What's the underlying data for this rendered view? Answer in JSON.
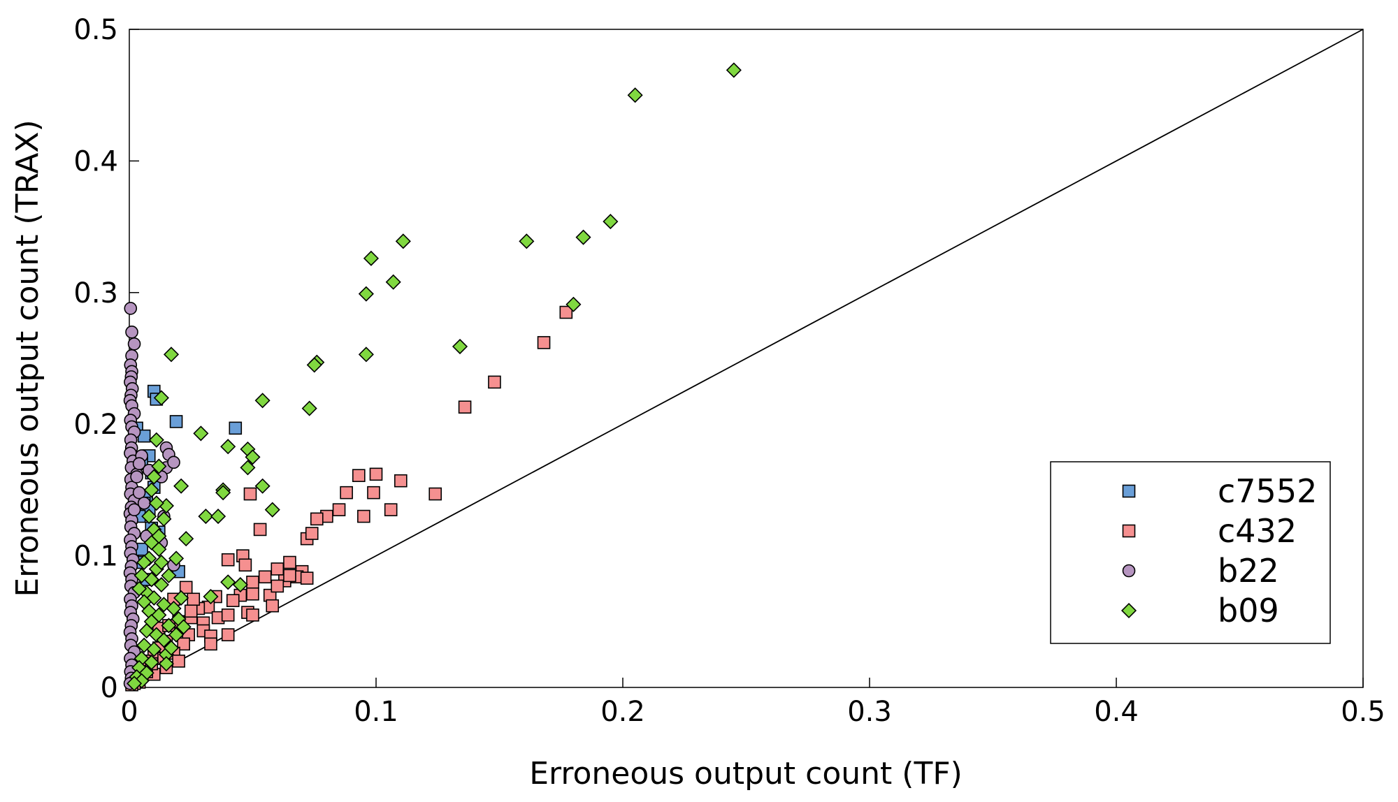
{
  "chart_data": {
    "type": "scatter",
    "xlabel": "Erroneous output count (TF)",
    "ylabel": "Erroneous output count (TRAX)",
    "xlim": [
      0,
      0.5
    ],
    "ylim": [
      0,
      0.5
    ],
    "x_ticks": [
      "0",
      "0.1",
      "0.2",
      "0.3",
      "0.4",
      "0.5"
    ],
    "y_ticks": [
      "0",
      "0.1",
      "0.2",
      "0.3",
      "0.4",
      "0.5"
    ],
    "diagonal_line": true,
    "legend_position": "bottom-right",
    "series": [
      {
        "name": "c7552",
        "marker": "square",
        "color": "#6a9fd8",
        "points": [
          [
            0.01,
            0.225
          ],
          [
            0.011,
            0.219
          ],
          [
            0.019,
            0.202
          ],
          [
            0.043,
            0.197
          ],
          [
            0.003,
            0.197
          ],
          [
            0.006,
            0.191
          ],
          [
            0.008,
            0.176
          ],
          [
            0.005,
            0.17
          ],
          [
            0.009,
            0.163
          ],
          [
            0.01,
            0.152
          ],
          [
            0.007,
            0.146
          ],
          [
            0.006,
            0.14
          ],
          [
            0.008,
            0.135
          ],
          [
            0.004,
            0.13
          ],
          [
            0.009,
            0.121
          ],
          [
            0.012,
            0.118
          ],
          [
            0.02,
            0.088
          ],
          [
            0.005,
            0.105
          ],
          [
            0.003,
            0.095
          ],
          [
            0.007,
            0.082
          ]
        ]
      },
      {
        "name": "c432",
        "marker": "square",
        "color": "#f59090",
        "points": [
          [
            0.177,
            0.285
          ],
          [
            0.168,
            0.262
          ],
          [
            0.148,
            0.232
          ],
          [
            0.136,
            0.213
          ],
          [
            0.124,
            0.147
          ],
          [
            0.11,
            0.157
          ],
          [
            0.1,
            0.162
          ],
          [
            0.093,
            0.161
          ],
          [
            0.099,
            0.148
          ],
          [
            0.088,
            0.148
          ],
          [
            0.106,
            0.135
          ],
          [
            0.095,
            0.13
          ],
          [
            0.085,
            0.135
          ],
          [
            0.08,
            0.13
          ],
          [
            0.076,
            0.128
          ],
          [
            0.072,
            0.113
          ],
          [
            0.074,
            0.117
          ],
          [
            0.049,
            0.147
          ],
          [
            0.053,
            0.12
          ],
          [
            0.046,
            0.1
          ],
          [
            0.04,
            0.097
          ],
          [
            0.047,
            0.093
          ],
          [
            0.06,
            0.09
          ],
          [
            0.065,
            0.095
          ],
          [
            0.07,
            0.088
          ],
          [
            0.063,
            0.081
          ],
          [
            0.068,
            0.084
          ],
          [
            0.055,
            0.084
          ],
          [
            0.05,
            0.08
          ],
          [
            0.045,
            0.07
          ],
          [
            0.042,
            0.066
          ],
          [
            0.035,
            0.069
          ],
          [
            0.032,
            0.061
          ],
          [
            0.028,
            0.06
          ],
          [
            0.025,
            0.053
          ],
          [
            0.03,
            0.049
          ],
          [
            0.036,
            0.053
          ],
          [
            0.04,
            0.055
          ],
          [
            0.048,
            0.057
          ],
          [
            0.05,
            0.055
          ],
          [
            0.057,
            0.07
          ],
          [
            0.058,
            0.062
          ],
          [
            0.05,
            0.071
          ],
          [
            0.06,
            0.077
          ],
          [
            0.065,
            0.085
          ],
          [
            0.072,
            0.083
          ],
          [
            0.023,
            0.076
          ],
          [
            0.026,
            0.067
          ],
          [
            0.018,
            0.067
          ],
          [
            0.02,
            0.05
          ],
          [
            0.024,
            0.04
          ],
          [
            0.022,
            0.033
          ],
          [
            0.03,
            0.043
          ],
          [
            0.033,
            0.039
          ],
          [
            0.04,
            0.04
          ],
          [
            0.033,
            0.033
          ],
          [
            0.015,
            0.035
          ],
          [
            0.012,
            0.03
          ],
          [
            0.01,
            0.025
          ],
          [
            0.018,
            0.026
          ],
          [
            0.02,
            0.02
          ],
          [
            0.014,
            0.022
          ],
          [
            0.008,
            0.015
          ],
          [
            0.005,
            0.01
          ],
          [
            0.003,
            0.008
          ],
          [
            0.006,
            0.02
          ],
          [
            0.012,
            0.045
          ],
          [
            0.016,
            0.047
          ],
          [
            0.025,
            0.058
          ],
          [
            0.015,
            0.015
          ],
          [
            0.01,
            0.01
          ],
          [
            0.004,
            0.004
          ],
          [
            0.002,
            0.003
          ],
          [
            0.001,
            0.002
          ],
          [
            0.007,
            0.012
          ],
          [
            0.009,
            0.018
          ]
        ]
      },
      {
        "name": "b22",
        "marker": "circle",
        "color": "#b695c0",
        "points": [
          [
            0.0005,
            0.288
          ],
          [
            0.001,
            0.27
          ],
          [
            0.002,
            0.261
          ],
          [
            0.001,
            0.252
          ],
          [
            0.0005,
            0.245
          ],
          [
            0.001,
            0.24
          ],
          [
            0.0008,
            0.236
          ],
          [
            0.0004,
            0.232
          ],
          [
            0.0012,
            0.227
          ],
          [
            0.0007,
            0.222
          ],
          [
            0.0003,
            0.218
          ],
          [
            0.001,
            0.214
          ],
          [
            0.002,
            0.208
          ],
          [
            0.0005,
            0.203
          ],
          [
            0.001,
            0.198
          ],
          [
            0.002,
            0.194
          ],
          [
            0.0006,
            0.188
          ],
          [
            0.0009,
            0.182
          ],
          [
            0.0004,
            0.178
          ],
          [
            0.0015,
            0.172
          ],
          [
            0.0008,
            0.167
          ],
          [
            0.003,
            0.162
          ],
          [
            0.0006,
            0.158
          ],
          [
            0.001,
            0.152
          ],
          [
            0.0005,
            0.147
          ],
          [
            0.002,
            0.142
          ],
          [
            0.0008,
            0.137
          ],
          [
            0.0003,
            0.132
          ],
          [
            0.001,
            0.127
          ],
          [
            0.0006,
            0.122
          ],
          [
            0.002,
            0.117
          ],
          [
            0.0004,
            0.112
          ],
          [
            0.001,
            0.107
          ],
          [
            0.0005,
            0.102
          ],
          [
            0.0015,
            0.097
          ],
          [
            0.0008,
            0.092
          ],
          [
            0.0003,
            0.087
          ],
          [
            0.001,
            0.082
          ],
          [
            0.0006,
            0.077
          ],
          [
            0.002,
            0.072
          ],
          [
            0.0004,
            0.067
          ],
          [
            0.001,
            0.062
          ],
          [
            0.0005,
            0.057
          ],
          [
            0.0015,
            0.052
          ],
          [
            0.0008,
            0.047
          ],
          [
            0.0003,
            0.042
          ],
          [
            0.001,
            0.037
          ],
          [
            0.0006,
            0.032
          ],
          [
            0.002,
            0.027
          ],
          [
            0.0004,
            0.022
          ],
          [
            0.001,
            0.017
          ],
          [
            0.0005,
            0.012
          ],
          [
            0.0008,
            0.007
          ],
          [
            0.0003,
            0.003
          ],
          [
            0.015,
            0.182
          ],
          [
            0.016,
            0.177
          ],
          [
            0.015,
            0.167
          ],
          [
            0.018,
            0.171
          ],
          [
            0.013,
            0.16
          ],
          [
            0.005,
            0.176
          ],
          [
            0.004,
            0.17
          ],
          [
            0.014,
            0.13
          ],
          [
            0.018,
            0.093
          ],
          [
            0.013,
            0.11
          ],
          [
            0.004,
            0.148
          ],
          [
            0.003,
            0.16
          ],
          [
            0.006,
            0.14
          ],
          [
            0.002,
            0.135
          ],
          [
            0.008,
            0.165
          ],
          [
            0.007,
            0.115
          ]
        ]
      },
      {
        "name": "b09",
        "marker": "diamond",
        "color": "#80d840",
        "points": [
          [
            0.245,
            0.469
          ],
          [
            0.205,
            0.45
          ],
          [
            0.195,
            0.354
          ],
          [
            0.184,
            0.342
          ],
          [
            0.161,
            0.339
          ],
          [
            0.18,
            0.291
          ],
          [
            0.134,
            0.259
          ],
          [
            0.111,
            0.339
          ],
          [
            0.098,
            0.326
          ],
          [
            0.107,
            0.308
          ],
          [
            0.096,
            0.299
          ],
          [
            0.096,
            0.253
          ],
          [
            0.076,
            0.247
          ],
          [
            0.075,
            0.245
          ],
          [
            0.073,
            0.212
          ],
          [
            0.054,
            0.218
          ],
          [
            0.017,
            0.253
          ],
          [
            0.013,
            0.22
          ],
          [
            0.011,
            0.188
          ],
          [
            0.029,
            0.193
          ],
          [
            0.04,
            0.183
          ],
          [
            0.048,
            0.181
          ],
          [
            0.05,
            0.175
          ],
          [
            0.048,
            0.167
          ],
          [
            0.054,
            0.153
          ],
          [
            0.021,
            0.153
          ],
          [
            0.038,
            0.15
          ],
          [
            0.038,
            0.148
          ],
          [
            0.058,
            0.135
          ],
          [
            0.031,
            0.13
          ],
          [
            0.036,
            0.13
          ],
          [
            0.023,
            0.113
          ],
          [
            0.019,
            0.098
          ],
          [
            0.04,
            0.08
          ],
          [
            0.045,
            0.078
          ],
          [
            0.033,
            0.069
          ],
          [
            0.015,
            0.138
          ],
          [
            0.014,
            0.128
          ],
          [
            0.012,
            0.168
          ],
          [
            0.01,
            0.16
          ],
          [
            0.009,
            0.15
          ],
          [
            0.011,
            0.14
          ],
          [
            0.008,
            0.13
          ],
          [
            0.01,
            0.12
          ],
          [
            0.009,
            0.11
          ],
          [
            0.012,
            0.105
          ],
          [
            0.008,
            0.098
          ],
          [
            0.011,
            0.09
          ],
          [
            0.009,
            0.082
          ],
          [
            0.013,
            0.078
          ],
          [
            0.007,
            0.072
          ],
          [
            0.01,
            0.068
          ],
          [
            0.014,
            0.063
          ],
          [
            0.008,
            0.058
          ],
          [
            0.012,
            0.055
          ],
          [
            0.009,
            0.05
          ],
          [
            0.016,
            0.047
          ],
          [
            0.007,
            0.043
          ],
          [
            0.011,
            0.04
          ],
          [
            0.014,
            0.036
          ],
          [
            0.006,
            0.032
          ],
          [
            0.01,
            0.029
          ],
          [
            0.015,
            0.025
          ],
          [
            0.005,
            0.022
          ],
          [
            0.009,
            0.019
          ],
          [
            0.004,
            0.015
          ],
          [
            0.007,
            0.011
          ],
          [
            0.003,
            0.008
          ],
          [
            0.005,
            0.005
          ],
          [
            0.002,
            0.003
          ],
          [
            0.018,
            0.06
          ],
          [
            0.02,
            0.052
          ],
          [
            0.022,
            0.046
          ],
          [
            0.019,
            0.04
          ],
          [
            0.021,
            0.068
          ],
          [
            0.017,
            0.03
          ],
          [
            0.015,
            0.018
          ],
          [
            0.006,
            0.095
          ],
          [
            0.005,
            0.085
          ],
          [
            0.004,
            0.075
          ],
          [
            0.006,
            0.065
          ],
          [
            0.012,
            0.115
          ],
          [
            0.013,
            0.095
          ],
          [
            0.016,
            0.085
          ]
        ]
      }
    ]
  }
}
